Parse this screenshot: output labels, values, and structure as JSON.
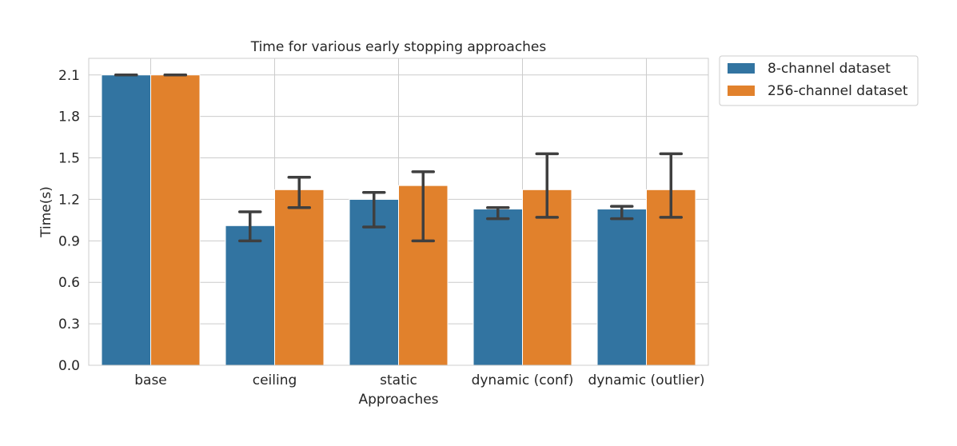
{
  "chart_data": {
    "type": "bar",
    "title": "Time for various early stopping approaches",
    "xlabel": "Approaches",
    "ylabel": "Time(s)",
    "categories": [
      "base",
      "ceiling",
      "static",
      "dynamic (conf)",
      "dynamic (outlier)"
    ],
    "ylim": [
      0,
      2.22
    ],
    "yticks": [
      0.0,
      0.3,
      0.6,
      0.9,
      1.2,
      1.5,
      1.8,
      2.1
    ],
    "ytick_labels": [
      "0.0",
      "0.3",
      "0.6",
      "0.9",
      "1.2",
      "1.5",
      "1.8",
      "2.1"
    ],
    "grid": true,
    "legend_position": "outside-top-right",
    "series": [
      {
        "name": "8-channel dataset",
        "color": "#3274a1",
        "values": [
          2.1,
          1.01,
          1.2,
          1.13,
          1.13
        ],
        "error_low": [
          2.1,
          0.9,
          1.0,
          1.06,
          1.06
        ],
        "error_high": [
          2.1,
          1.11,
          1.25,
          1.14,
          1.15
        ]
      },
      {
        "name": "256-channel dataset",
        "color": "#e1812c",
        "values": [
          2.1,
          1.27,
          1.3,
          1.27,
          1.27
        ],
        "error_low": [
          2.1,
          1.14,
          0.9,
          1.07,
          1.07
        ],
        "error_high": [
          2.1,
          1.36,
          1.4,
          1.53,
          1.53
        ]
      }
    ],
    "errorbar_color": "#3f3f3f",
    "grid_color": "#cccccc"
  }
}
